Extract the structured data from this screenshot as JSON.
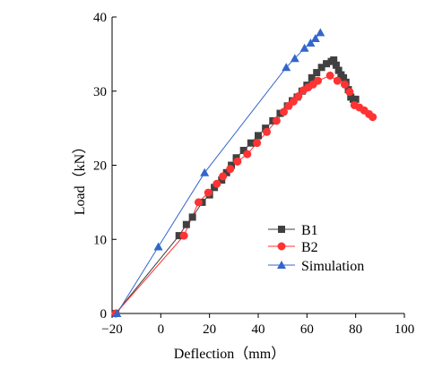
{
  "chart_data": {
    "type": "scatter",
    "xlabel": "Deflection（mm）",
    "ylabel": "Load（kN）",
    "xlim": [
      -20,
      100
    ],
    "ylim": [
      0,
      40
    ],
    "xticks": [
      "−20",
      "0",
      "20",
      "40",
      "60",
      "80",
      "100"
    ],
    "yticks": [
      "0",
      "10",
      "20",
      "30",
      "40"
    ],
    "xtick_values": [
      -20,
      0,
      20,
      40,
      60,
      80,
      100
    ],
    "ytick_values": [
      0,
      10,
      20,
      30,
      40
    ],
    "grid": false,
    "legend_position": "lower-right",
    "series": [
      {
        "name": "B1",
        "color": "#404040",
        "marker": "square",
        "x": [
          -18.5,
          7.5,
          10.5,
          13,
          17,
          20,
          22,
          25,
          27,
          29,
          31,
          34,
          37,
          40,
          43,
          46,
          49,
          52,
          54,
          56,
          58,
          60,
          62,
          64,
          66,
          68,
          70,
          71,
          72,
          73,
          74,
          75,
          76,
          77,
          78,
          79,
          80
        ],
        "y": [
          0,
          10.5,
          12,
          13,
          15,
          16,
          17,
          18,
          19,
          20,
          21,
          22,
          23,
          24,
          25,
          26,
          27,
          28,
          28.7,
          29.2,
          30,
          30.8,
          31.8,
          32.5,
          33.2,
          33.7,
          34,
          34.2,
          33.5,
          32.8,
          32.2,
          31.8,
          31.2,
          30.2,
          29.2,
          28.9,
          28.9
        ]
      },
      {
        "name": "B2",
        "color": "#ff3333",
        "marker": "circle",
        "x": [
          -18.5,
          9.5,
          15.5,
          19.5,
          23,
          25.5,
          28.5,
          31.5,
          35.5,
          39.5,
          43.5,
          47.5,
          50.5,
          52.5,
          54.5,
          56.5,
          58.5,
          60.5,
          62.5,
          64.5,
          69.5,
          72.5,
          75.5,
          77.5,
          79.5,
          81.5,
          83.5,
          85.5,
          87
        ],
        "y": [
          0,
          10.5,
          15,
          16.3,
          17.5,
          18.5,
          19.5,
          20.5,
          21.5,
          23,
          24.5,
          26,
          27.2,
          28,
          28.6,
          29.3,
          30.1,
          30.5,
          30.9,
          31.4,
          32.1,
          31.4,
          30.9,
          29.9,
          28.1,
          27.8,
          27.4,
          26.9,
          26.5
        ]
      },
      {
        "name": "Simulation",
        "color": "#3366cc",
        "marker": "triangle",
        "x": [
          -18,
          -1,
          18,
          51.5,
          55,
          59,
          61.5,
          63.5,
          65.5
        ],
        "y": [
          0,
          9,
          19,
          33.2,
          34.4,
          35.8,
          36.5,
          37.1,
          37.9
        ]
      }
    ]
  }
}
